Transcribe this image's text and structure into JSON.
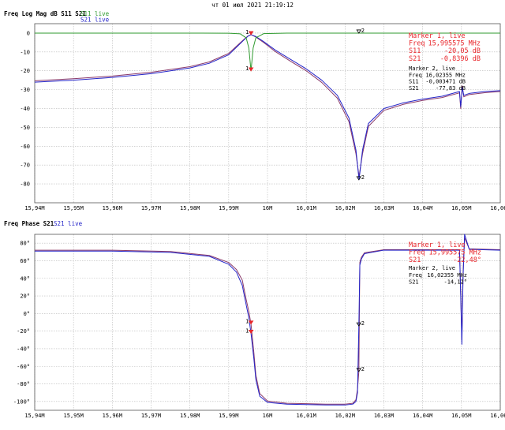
{
  "timestamp": "чт 01 июл 2021 21:19:12",
  "colors": {
    "s11": "#2e9a2e",
    "s21": "#2424c8",
    "s21_alt": "#8a3a6a",
    "marker": "#e8262b"
  },
  "chart_data": [
    {
      "type": "line",
      "title": "Freq Log Mag dB S11 S21",
      "legend": [
        {
          "name": "S11 live",
          "color": "#2e9a2e"
        },
        {
          "name": "S21 live",
          "color": "#2424c8"
        }
      ],
      "legend_position": "top-left",
      "xlabel": "",
      "ylabel": "",
      "x_unit": "MHz",
      "xlim": [
        15.94,
        16.06
      ],
      "ylim": [
        -90,
        5
      ],
      "x_ticks": [
        "15,94M",
        "15,95M",
        "15,96M",
        "15,97M",
        "15,98M",
        "15,99M",
        "16M",
        "16,01M",
        "16,02M",
        "16,03M",
        "16,04M",
        "16,05M",
        "16,06M"
      ],
      "y_ticks": [
        {
          "v": 0,
          "label": "0"
        },
        {
          "v": -10,
          "label": "-10"
        },
        {
          "v": -20,
          "label": "-20"
        },
        {
          "v": -30,
          "label": "-30"
        },
        {
          "v": -40,
          "label": "-40"
        },
        {
          "v": -50,
          "label": "-50"
        },
        {
          "v": -60,
          "label": "-60"
        },
        {
          "v": -70,
          "label": "-70"
        },
        {
          "v": -80,
          "label": "-80"
        }
      ],
      "grid": true,
      "series": [
        {
          "name": "S11 live",
          "color": "#2e9a2e",
          "x": [
            15.94,
            15.96,
            15.98,
            15.99,
            15.993,
            15.9945,
            15.9952,
            15.99575,
            15.9963,
            15.997,
            15.999,
            16.005,
            16.02,
            16.04,
            16.06
          ],
          "y": [
            0,
            0,
            0,
            -0.05,
            -0.4,
            -2.5,
            -8,
            -20.05,
            -8,
            -2.5,
            -0.3,
            0,
            0,
            0,
            0
          ]
        },
        {
          "name": "S21 live",
          "color": "#2424c8",
          "x": [
            15.94,
            15.95,
            15.96,
            15.97,
            15.98,
            15.985,
            15.99,
            15.992,
            15.994,
            15.995,
            15.99575,
            15.997,
            15.999,
            16.002,
            16.006,
            16.01,
            16.014,
            16.018,
            16.021,
            16.0228,
            16.0236,
            16.0245,
            16.026,
            16.03,
            16.035,
            16.04,
            16.045,
            16.0495,
            16.0498,
            16.0502,
            16.0506,
            16.052,
            16.056,
            16.06
          ],
          "y": [
            -26,
            -25,
            -23.5,
            -21.5,
            -18.5,
            -16,
            -11.5,
            -7.5,
            -3.5,
            -1.6,
            -0.84,
            -1.8,
            -4.5,
            -9,
            -14,
            -19,
            -25,
            -33,
            -45,
            -62,
            -77.8,
            -62,
            -48,
            -40,
            -37,
            -35,
            -33.5,
            -31,
            -39,
            -29,
            -33,
            -32,
            -31,
            -30.5
          ]
        },
        {
          "name": "S21 live",
          "color": "#8a3a6a",
          "x": [
            15.94,
            15.95,
            15.96,
            15.97,
            15.98,
            15.985,
            15.99,
            15.992,
            15.994,
            15.995,
            15.99575,
            15.997,
            15.999,
            16.002,
            16.006,
            16.01,
            16.014,
            16.018,
            16.021,
            16.0228,
            16.0236,
            16.0245,
            16.026,
            16.03,
            16.035,
            16.04,
            16.045,
            16.0495,
            16.0498,
            16.0502,
            16.0506,
            16.052,
            16.056,
            16.06
          ],
          "y": [
            -25.3,
            -24.2,
            -22.8,
            -20.8,
            -17.8,
            -15.3,
            -10.8,
            -7,
            -3.2,
            -1.5,
            -0.8,
            -2.1,
            -5,
            -9.8,
            -15,
            -20,
            -26.2,
            -34.5,
            -47,
            -64,
            -76,
            -64,
            -49.5,
            -41,
            -37.8,
            -35.7,
            -34.2,
            -31.7,
            -40,
            -28,
            -33.8,
            -32.6,
            -31.6,
            -31
          ]
        }
      ],
      "markers": [
        {
          "id": "1",
          "x": 15.99575,
          "y": -0.84,
          "label": "1"
        },
        {
          "id": "1",
          "x": 15.99575,
          "y": -20.05,
          "label": "1"
        },
        {
          "id": "2",
          "x": 16.02355,
          "y": -0.003471,
          "label": "2"
        },
        {
          "id": "2",
          "x": 16.02355,
          "y": -77.83,
          "label": "2"
        }
      ],
      "marker_boxes": [
        {
          "title": "Marker 1, live",
          "color": "#e8262b",
          "rows": [
            {
              "k": "Freq",
              "v": "15,995575 MHz"
            },
            {
              "k": "S11",
              "v": "-20,05 dB"
            },
            {
              "k": "S21",
              "v": "-0,8396 dB"
            }
          ]
        },
        {
          "title": "Marker 2, live",
          "color": "#000000",
          "rows": [
            {
              "k": "Freq",
              "v": "16,02355 MHz"
            },
            {
              "k": "S11",
              "v": "-0,003471 dB"
            },
            {
              "k": "S21",
              "v": "-77,83 dB"
            }
          ]
        }
      ]
    },
    {
      "type": "line",
      "title": "Freq Phase S21",
      "legend": [
        {
          "name": "S21 live",
          "color": "#2424c8"
        }
      ],
      "legend_position": "top-left",
      "xlabel": "",
      "ylabel": "",
      "x_unit": "MHz",
      "xlim": [
        15.94,
        16.06
      ],
      "ylim": [
        -110,
        90
      ],
      "x_ticks": [
        "15,94M",
        "15,95M",
        "15,96M",
        "15,97M",
        "15,98M",
        "15,99M",
        "16M",
        "16,01M",
        "16,02M",
        "16,03M",
        "16,04M",
        "16,05M",
        "16,06M"
      ],
      "y_ticks": [
        {
          "v": 80,
          "label": "80°"
        },
        {
          "v": 60,
          "label": "60°"
        },
        {
          "v": 40,
          "label": "40°"
        },
        {
          "v": 20,
          "label": "20°"
        },
        {
          "v": 0,
          "label": "0°"
        },
        {
          "v": -20,
          "label": "-20°"
        },
        {
          "v": -40,
          "label": "-40°"
        },
        {
          "v": -60,
          "label": "-60°"
        },
        {
          "v": -80,
          "label": "-80°"
        },
        {
          "v": -100,
          "label": "-100°"
        }
      ],
      "grid": true,
      "series": [
        {
          "name": "S21 live",
          "color": "#2424c8",
          "x": [
            15.94,
            15.96,
            15.975,
            15.985,
            15.99,
            15.992,
            15.9935,
            15.9945,
            15.9952,
            15.99575,
            15.9965,
            15.997,
            15.998,
            16,
            16.005,
            16.01,
            16.015,
            16.02,
            16.022,
            16.0228,
            16.0232,
            16.02355,
            16.0238,
            16.0242,
            16.025,
            16.03,
            16.04,
            16.0495,
            16.0498,
            16.0501,
            16.0504,
            16.0508,
            16.052,
            16.06
          ],
          "y": [
            71,
            71,
            69.5,
            65,
            56,
            47,
            32,
            10,
            -5,
            -22.48,
            -52,
            -75,
            -94,
            -101,
            -103,
            -103.5,
            -104,
            -104,
            -103,
            -100,
            -90,
            -14.12,
            55,
            62,
            68,
            72,
            72,
            72,
            20,
            -35,
            40,
            90,
            73,
            72
          ]
        },
        {
          "name": "S21 live",
          "color": "#8a3a6a",
          "x": [
            15.94,
            15.96,
            15.975,
            15.985,
            15.99,
            15.992,
            15.9935,
            15.9945,
            15.9952,
            15.99575,
            15.9965,
            15.997,
            15.998,
            16,
            16.005,
            16.01,
            16.015,
            16.02,
            16.022,
            16.0228,
            16.0232,
            16.02355,
            16.0238,
            16.0242,
            16.025,
            16.03,
            16.04,
            16.0495,
            16.0498,
            16.0501,
            16.0504,
            16.0508,
            16.052,
            16.06
          ],
          "y": [
            72,
            72,
            70.5,
            66,
            58,
            50,
            38,
            16,
            2,
            -12,
            -45,
            -70,
            -91,
            -99.5,
            -102,
            -102.5,
            -103,
            -103,
            -102,
            -98,
            -86,
            -66,
            58,
            64,
            69,
            72.5,
            72.5,
            72.5,
            25,
            -30,
            45,
            86,
            73.5,
            72.5
          ]
        }
      ],
      "markers": [
        {
          "id": "1",
          "x": 15.99575,
          "y": -12,
          "label": "1"
        },
        {
          "id": "1",
          "x": 15.99575,
          "y": -22.48,
          "label": "1"
        },
        {
          "id": "2",
          "x": 16.02355,
          "y": -14.12,
          "label": "2"
        },
        {
          "id": "2",
          "x": 16.02355,
          "y": -66,
          "label": "2"
        }
      ],
      "marker_boxes": [
        {
          "title": "Marker 1, live",
          "color": "#e8262b",
          "rows": [
            {
              "k": "Freq",
              "v": "15,995575 MHz"
            },
            {
              "k": "S21",
              "v": "-22,48°"
            }
          ]
        },
        {
          "title": "Marker 2, live",
          "color": "#000000",
          "rows": [
            {
              "k": "Freq",
              "v": "16,02355 MHz"
            },
            {
              "k": "S21",
              "v": "-14,12°"
            }
          ]
        }
      ]
    }
  ]
}
